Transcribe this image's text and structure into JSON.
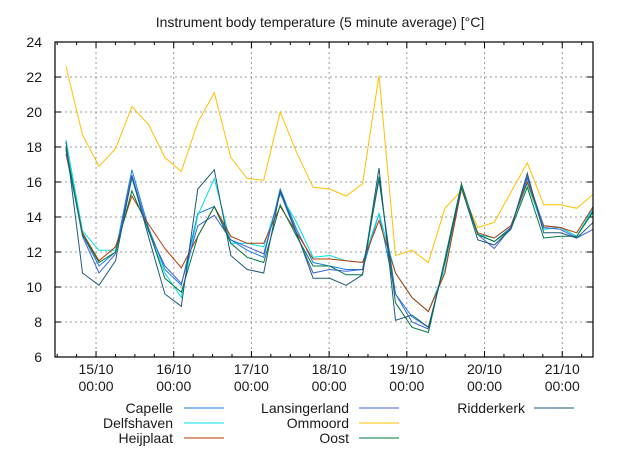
{
  "chart_data": {
    "type": "line",
    "title": "Instrument body temperature (5 minute average) [°C]",
    "xlabel": "",
    "ylabel": "",
    "ylim": [
      6,
      24
    ],
    "yticks": [
      6,
      8,
      10,
      12,
      14,
      16,
      18,
      20,
      22,
      24
    ],
    "x_unit": "days since 14/10 00:00",
    "xlim": [
      0.472,
      7.396
    ],
    "x_start": 0.614,
    "x_step": 0.212,
    "xticks": [
      {
        "value": 1,
        "date": "15/10",
        "time": "00:00"
      },
      {
        "value": 2,
        "date": "16/10",
        "time": "00:00"
      },
      {
        "value": 3,
        "date": "17/10",
        "time": "00:00"
      },
      {
        "value": 4,
        "date": "18/10",
        "time": "00:00"
      },
      {
        "value": 5,
        "date": "19/10",
        "time": "00:00"
      },
      {
        "value": 6,
        "date": "20/10",
        "time": "00:00"
      },
      {
        "value": 7,
        "date": "21/10",
        "time": "00:00"
      }
    ],
    "grid": true,
    "legend_position": "bottom",
    "series": [
      {
        "name": "Capelle",
        "color": "#1a7fe0",
        "values": [
          18.0,
          13.0,
          11.2,
          12.0,
          16.7,
          13.4,
          11.0,
          10.1,
          14.2,
          14.6,
          12.7,
          12.1,
          11.7,
          15.6,
          13.3,
          11.4,
          11.2,
          11.0,
          11.0,
          14.2,
          9.6,
          8.3,
          7.7,
          11.4,
          15.7,
          13.0,
          12.6,
          13.4,
          16.2,
          13.5,
          13.4,
          12.9,
          14.4
        ]
      },
      {
        "name": "Delfshaven",
        "color": "#00e0e8",
        "values": [
          18.4,
          13.2,
          12.1,
          12.1,
          16.2,
          13.2,
          10.8,
          9.4,
          14.1,
          16.2,
          12.5,
          12.5,
          12.3,
          15.3,
          13.7,
          11.7,
          11.8,
          11.5,
          11.4,
          14.2,
          10.8,
          9.4,
          8.6,
          11.0,
          15.6,
          13.0,
          12.8,
          13.5,
          15.9,
          13.3,
          13.4,
          12.9,
          14.5
        ]
      },
      {
        "name": "Heijplaat",
        "color": "#b83a00",
        "values": [
          17.6,
          13.1,
          11.5,
          12.3,
          15.2,
          13.6,
          12.2,
          11.1,
          12.9,
          14.6,
          12.9,
          12.5,
          12.5,
          14.6,
          13.1,
          11.6,
          11.6,
          11.5,
          11.4,
          13.8,
          10.8,
          9.4,
          8.6,
          10.8,
          15.6,
          13.1,
          12.8,
          13.5,
          16.0,
          13.5,
          13.4,
          13.1,
          14.6
        ]
      },
      {
        "name": "Lansingerland",
        "color": "#4060d0",
        "values": [
          17.8,
          12.9,
          10.8,
          11.9,
          16.4,
          13.2,
          11.2,
          10.2,
          13.5,
          14.1,
          12.7,
          12.3,
          11.9,
          15.4,
          13.0,
          10.8,
          11.0,
          10.9,
          11.0,
          16.1,
          9.6,
          8.0,
          7.6,
          11.5,
          15.6,
          13.0,
          12.2,
          13.4,
          16.3,
          13.4,
          13.3,
          12.8,
          13.3
        ]
      },
      {
        "name": "Ommoord",
        "color": "#ffc000",
        "values": [
          22.6,
          18.7,
          16.9,
          17.9,
          20.3,
          19.3,
          17.4,
          16.6,
          19.4,
          21.1,
          17.4,
          16.2,
          16.1,
          20.0,
          17.7,
          15.7,
          15.6,
          15.2,
          15.9,
          22.1,
          11.8,
          12.1,
          11.4,
          14.5,
          15.5,
          13.4,
          13.7,
          15.4,
          17.1,
          14.7,
          14.7,
          14.5,
          15.3
        ]
      },
      {
        "name": "Oost",
        "color": "#007a40",
        "values": [
          17.9,
          13.0,
          11.4,
          12.0,
          15.5,
          13.3,
          10.5,
          9.7,
          12.9,
          14.6,
          12.5,
          11.7,
          11.4,
          14.7,
          12.9,
          11.2,
          11.2,
          10.7,
          10.7,
          16.3,
          9.1,
          7.7,
          7.4,
          11.6,
          15.9,
          13.0,
          12.6,
          13.3,
          15.7,
          12.8,
          12.9,
          12.9,
          14.3
        ]
      },
      {
        "name": "Ridderkerk",
        "color": "#1e5a7a",
        "values": [
          18.3,
          10.8,
          10.1,
          11.5,
          16.3,
          12.9,
          9.6,
          8.9,
          15.6,
          16.7,
          11.8,
          11.0,
          10.8,
          15.5,
          13.1,
          10.5,
          10.5,
          10.1,
          10.7,
          16.8,
          8.1,
          8.4,
          7.7,
          11.4,
          15.7,
          12.7,
          12.4,
          13.3,
          16.5,
          13.1,
          13.1,
          12.8,
          13.7
        ]
      }
    ]
  }
}
